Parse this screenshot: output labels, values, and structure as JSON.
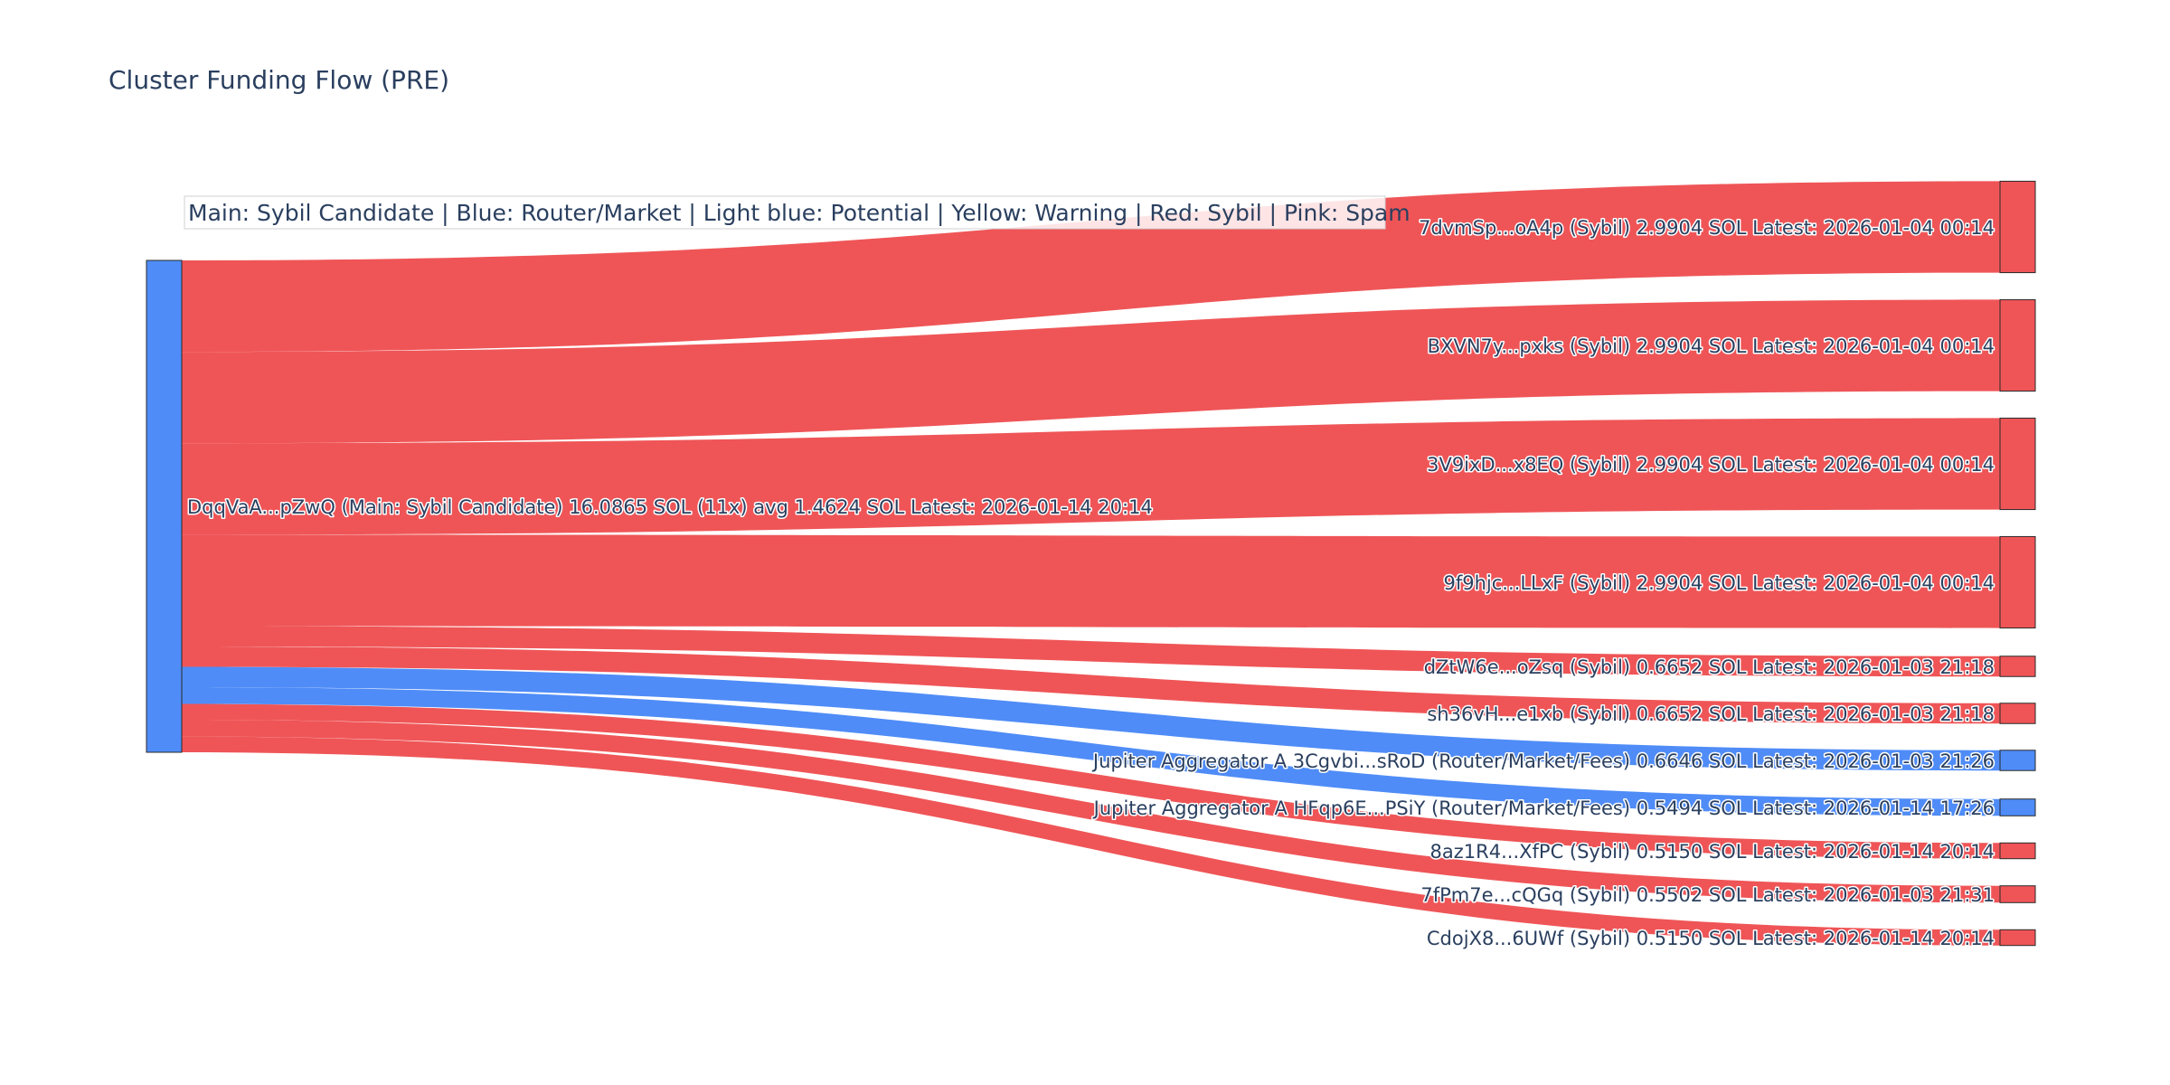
{
  "title": "Cluster Funding Flow (PRE)",
  "legend_note": "Main: Sybil Candidate  |  Blue: Router/Market | Light blue: Potential | Yellow: Warning | Red: Sybil | Pink: Spam",
  "colors": {
    "main": "#4f8cf7",
    "sybil": "#ef5557",
    "router": "#4f8cf7",
    "node_border": "#2a2a2a"
  },
  "chart_data": {
    "type": "sankey",
    "title": "Cluster Funding Flow (PRE)",
    "source": {
      "label": "DqqVaA...pZwQ (Main: Sybil Candidate) 16.0865 SOL (11x) avg 1.4624 SOL Latest: 2026-01-14 20:14",
      "category": "main"
    },
    "targets": [
      {
        "label": "7dvmSp...oA4p (Sybil) 2.9904 SOL Latest: 2026-01-04 00:14",
        "value": 2.9904,
        "category": "sybil"
      },
      {
        "label": "BXVN7y...pxks (Sybil) 2.9904 SOL Latest: 2026-01-04 00:14",
        "value": 2.9904,
        "category": "sybil"
      },
      {
        "label": "3V9ixD...x8EQ (Sybil) 2.9904 SOL Latest: 2026-01-04 00:14",
        "value": 2.9904,
        "category": "sybil"
      },
      {
        "label": "9f9hjc...LLxF (Sybil) 2.9904 SOL Latest: 2026-01-04 00:14",
        "value": 2.9904,
        "category": "sybil"
      },
      {
        "label": "dZtW6e...oZsq (Sybil) 0.6652 SOL Latest: 2026-01-03 21:18",
        "value": 0.6652,
        "category": "sybil"
      },
      {
        "label": "sh36vH...e1xb (Sybil) 0.6652 SOL Latest: 2026-01-03 21:18",
        "value": 0.6652,
        "category": "sybil"
      },
      {
        "label": "Jupiter Aggregator A 3Cgvbi...sRoD (Router/Market/Fees) 0.6646 SOL Latest: 2026-01-03 21:26",
        "value": 0.6646,
        "category": "router"
      },
      {
        "label": "Jupiter Aggregator A HFqp6E...PSiY (Router/Market/Fees) 0.5494 SOL Latest: 2026-01-14 17:26",
        "value": 0.5494,
        "category": "router"
      },
      {
        "label": "8az1R4...XfPC (Sybil) 0.5150 SOL Latest: 2026-01-14 20:14",
        "value": 0.515,
        "category": "sybil"
      },
      {
        "label": "7fPm7e...cQGq (Sybil) 0.5502 SOL Latest: 2026-01-03 21:31",
        "value": 0.5502,
        "category": "sybil"
      },
      {
        "label": "CdojX8...6UWf (Sybil) 0.5150 SOL Latest: 2026-01-14 20:14",
        "value": 0.515,
        "category": "sybil"
      }
    ]
  }
}
